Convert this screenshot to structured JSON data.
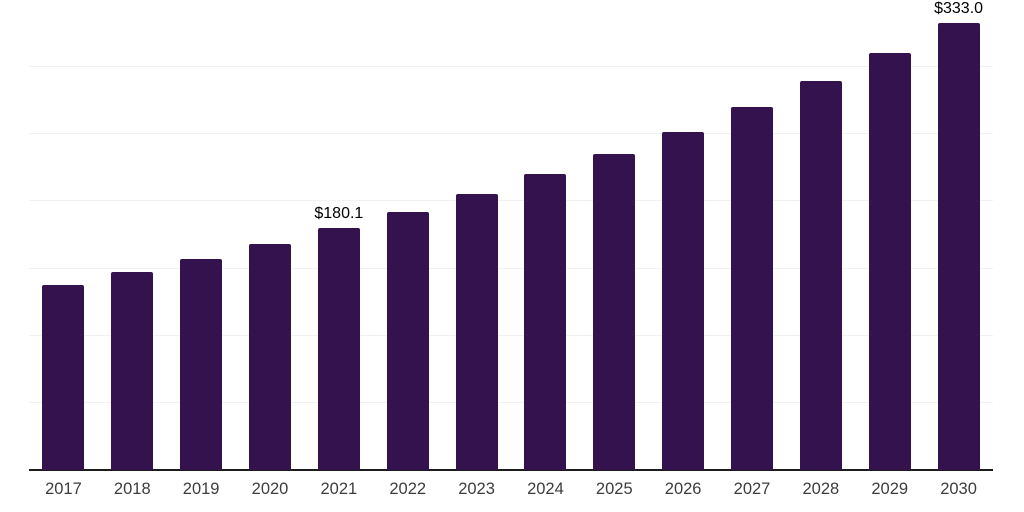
{
  "chart_data": {
    "type": "bar",
    "title": "",
    "xlabel": "",
    "ylabel": "",
    "categories": [
      "2017",
      "2018",
      "2019",
      "2020",
      "2021",
      "2022",
      "2023",
      "2024",
      "2025",
      "2026",
      "2027",
      "2028",
      "2029",
      "2030"
    ],
    "values": [
      138.0,
      147.2,
      157.0,
      168.3,
      180.1,
      192.5,
      205.5,
      220.6,
      235.5,
      251.8,
      270.0,
      289.4,
      310.2,
      333.0
    ],
    "value_labels": {
      "2021": "$180.1",
      "2030": "$333.0"
    },
    "ylim": [
      0,
      350
    ],
    "grid_step": 50,
    "grid": true,
    "legend": false,
    "y_tick_labels_visible": false,
    "colors": {
      "bar": "#33124E",
      "gridline": "#f2f2f2",
      "axis_line": "#1c1c1c",
      "x_tick_label": "#3d3d3d",
      "value_label": "#000000",
      "background": "#ffffff"
    }
  }
}
